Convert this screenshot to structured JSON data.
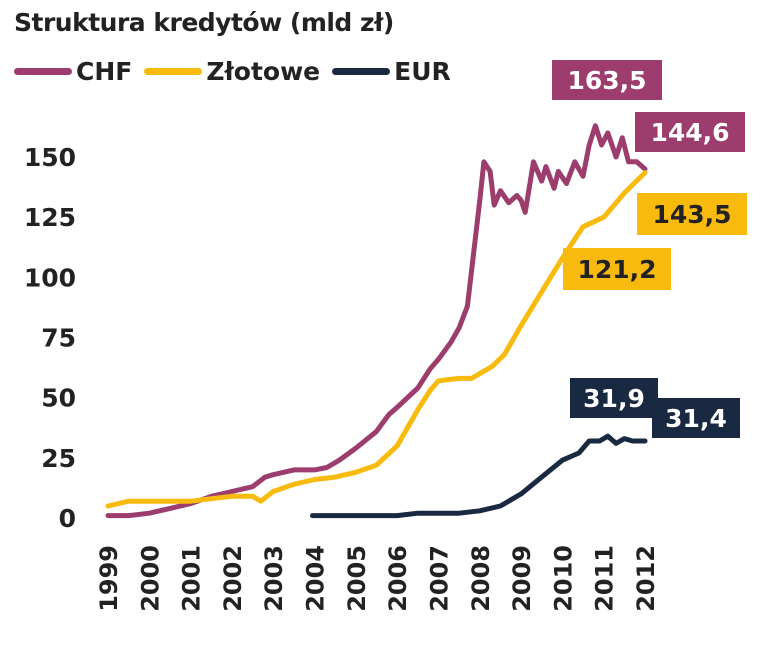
{
  "chart_data": {
    "type": "line",
    "title": "Struktura kredytów (mld  zł)",
    "xlabel": "",
    "ylabel": "",
    "x_ticks": [
      "1999",
      "2000",
      "2001",
      "2002",
      "2003",
      "2004",
      "2005",
      "2006",
      "2007",
      "2008",
      "2009",
      "2010",
      "2011",
      "2012"
    ],
    "y_ticks": [
      0,
      25,
      50,
      75,
      100,
      125,
      150
    ],
    "xlim": [
      1999,
      2012.2
    ],
    "ylim": [
      0,
      170
    ],
    "legend_position": "top-left",
    "grid": false,
    "series": [
      {
        "name": "CHF",
        "color": "#9c3d6e",
        "points": [
          [
            1999.0,
            1
          ],
          [
            1999.5,
            1
          ],
          [
            2000.0,
            2
          ],
          [
            2000.5,
            4
          ],
          [
            2001.0,
            6
          ],
          [
            2001.5,
            9
          ],
          [
            2002.0,
            11
          ],
          [
            2002.5,
            13
          ],
          [
            2002.8,
            17
          ],
          [
            2003.0,
            18
          ],
          [
            2003.5,
            20
          ],
          [
            2004.0,
            20
          ],
          [
            2004.3,
            21
          ],
          [
            2004.6,
            24
          ],
          [
            2005.0,
            29
          ],
          [
            2005.5,
            36
          ],
          [
            2005.8,
            43
          ],
          [
            2006.0,
            46
          ],
          [
            2006.5,
            54
          ],
          [
            2006.8,
            62
          ],
          [
            2007.0,
            66
          ],
          [
            2007.3,
            73
          ],
          [
            2007.5,
            79
          ],
          [
            2007.7,
            88
          ],
          [
            2007.85,
            110
          ],
          [
            2008.0,
            132
          ],
          [
            2008.1,
            148
          ],
          [
            2008.25,
            144
          ],
          [
            2008.35,
            130
          ],
          [
            2008.5,
            136
          ],
          [
            2008.7,
            131
          ],
          [
            2008.9,
            134
          ],
          [
            2009.0,
            132
          ],
          [
            2009.1,
            127
          ],
          [
            2009.3,
            148
          ],
          [
            2009.5,
            140
          ],
          [
            2009.6,
            146
          ],
          [
            2009.8,
            137
          ],
          [
            2009.9,
            144
          ],
          [
            2010.1,
            139
          ],
          [
            2010.3,
            148
          ],
          [
            2010.5,
            142
          ],
          [
            2010.65,
            155
          ],
          [
            2010.8,
            163
          ],
          [
            2010.95,
            155
          ],
          [
            2011.1,
            160
          ],
          [
            2011.3,
            150
          ],
          [
            2011.45,
            158
          ],
          [
            2011.6,
            148
          ],
          [
            2011.8,
            148
          ],
          [
            2012.0,
            145
          ]
        ],
        "end_labels": [
          "163,5",
          "144,6"
        ]
      },
      {
        "name": "Złotowe",
        "color": "#f8ba0c",
        "points": [
          [
            1999.0,
            5
          ],
          [
            1999.5,
            7
          ],
          [
            2000.0,
            7
          ],
          [
            2000.5,
            7
          ],
          [
            2001.0,
            7
          ],
          [
            2001.5,
            8
          ],
          [
            2002.0,
            9
          ],
          [
            2002.5,
            9
          ],
          [
            2002.7,
            7
          ],
          [
            2003.0,
            11
          ],
          [
            2003.5,
            14
          ],
          [
            2004.0,
            16
          ],
          [
            2004.5,
            17
          ],
          [
            2005.0,
            19
          ],
          [
            2005.5,
            22
          ],
          [
            2006.0,
            30
          ],
          [
            2006.5,
            45
          ],
          [
            2006.8,
            53
          ],
          [
            2007.0,
            57
          ],
          [
            2007.5,
            58
          ],
          [
            2007.8,
            58
          ],
          [
            2008.0,
            60
          ],
          [
            2008.3,
            63
          ],
          [
            2008.6,
            68
          ],
          [
            2009.0,
            80
          ],
          [
            2009.5,
            94
          ],
          [
            2010.0,
            108
          ],
          [
            2010.5,
            121
          ],
          [
            2011.0,
            125
          ],
          [
            2011.5,
            135
          ],
          [
            2012.0,
            143.5
          ]
        ],
        "end_labels": [
          "121,2",
          "143,5"
        ]
      },
      {
        "name": "EUR",
        "color": "#1a2942",
        "points": [
          [
            2003.95,
            1
          ],
          [
            2004.5,
            1
          ],
          [
            2005.0,
            1
          ],
          [
            2005.5,
            1
          ],
          [
            2006.0,
            1
          ],
          [
            2006.5,
            2
          ],
          [
            2007.0,
            2
          ],
          [
            2007.5,
            2
          ],
          [
            2008.0,
            3
          ],
          [
            2008.5,
            5
          ],
          [
            2009.0,
            10
          ],
          [
            2009.5,
            17
          ],
          [
            2010.0,
            24
          ],
          [
            2010.4,
            27
          ],
          [
            2010.65,
            32
          ],
          [
            2010.9,
            32
          ],
          [
            2011.1,
            34
          ],
          [
            2011.3,
            31
          ],
          [
            2011.5,
            33
          ],
          [
            2011.7,
            32
          ],
          [
            2012.0,
            32
          ]
        ],
        "end_labels": [
          "31,9",
          "31,4"
        ]
      }
    ]
  }
}
